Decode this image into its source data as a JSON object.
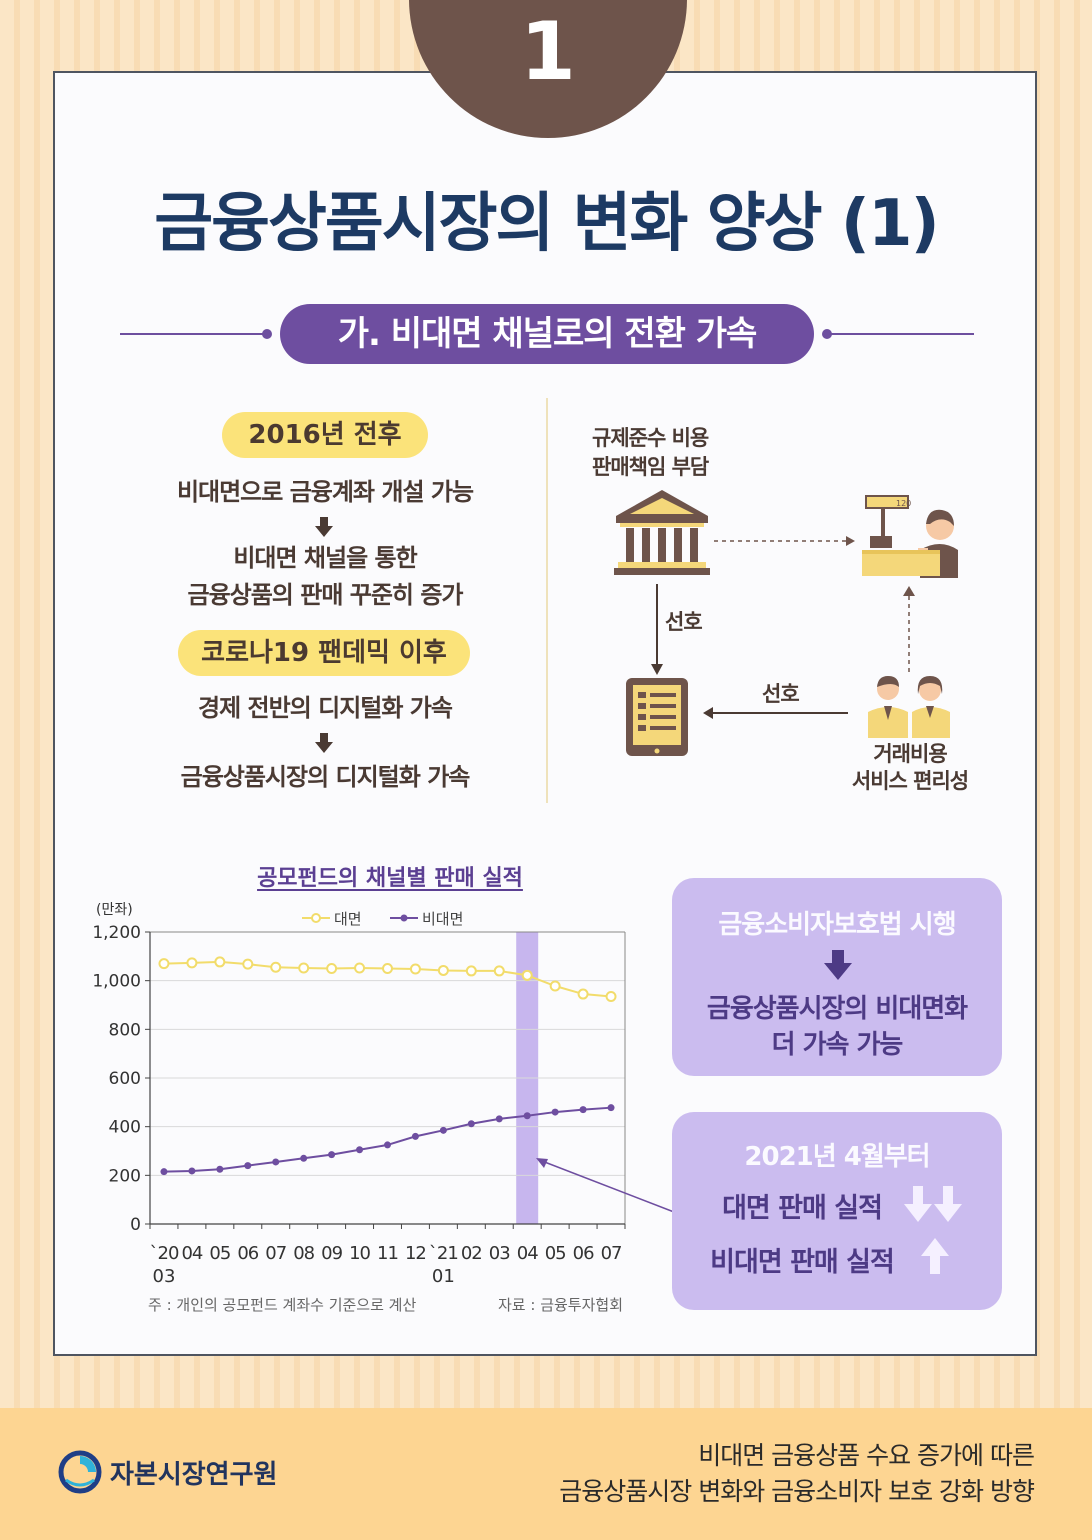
{
  "header": {
    "number": "1",
    "title": "금융상품시장의 변화 양상 (1)",
    "section_label": "가. 비대면 채널로의 전환 가속"
  },
  "left_panel": {
    "badge1": "2016년 전후",
    "text1": "비대면으로 금융계좌 개설 가능",
    "text2a": "비대면 채널을 통한",
    "text2b": "금융상품의 판매 꾸준히 증가",
    "badge2": "코로나19 팬데믹 이후",
    "text3": "경제 전반의 디지털화 가속",
    "text4": "금융상품시장의 디지털화 가속"
  },
  "diagram": {
    "top_label_a": "규제준수 비용",
    "top_label_b": "판매책임 부담",
    "pref_vertical": "선호",
    "pref_horizontal": "선호",
    "bottom_label_a": "거래비용",
    "bottom_label_b": "서비스 편리성",
    "counter_display": "120"
  },
  "chart_data": {
    "type": "line",
    "title": "공모펀드의 채널별 판매 실적",
    "ylabel": "(만좌)",
    "ylim": [
      0,
      1200
    ],
    "yticks": [
      "0",
      "200",
      "400",
      "600",
      "800",
      "1,000",
      "1,200"
    ],
    "x_labels": [
      {
        "top": "`20",
        "bottom": "03"
      },
      {
        "top": "04",
        "bottom": ""
      },
      {
        "top": "05",
        "bottom": ""
      },
      {
        "top": "06",
        "bottom": ""
      },
      {
        "top": "07",
        "bottom": ""
      },
      {
        "top": "08",
        "bottom": ""
      },
      {
        "top": "09",
        "bottom": ""
      },
      {
        "top": "10",
        "bottom": ""
      },
      {
        "top": "11",
        "bottom": ""
      },
      {
        "top": "12",
        "bottom": ""
      },
      {
        "top": "`21",
        "bottom": "01"
      },
      {
        "top": "02",
        "bottom": ""
      },
      {
        "top": "03",
        "bottom": ""
      },
      {
        "top": "04",
        "bottom": ""
      },
      {
        "top": "05",
        "bottom": ""
      },
      {
        "top": "06",
        "bottom": ""
      },
      {
        "top": "07",
        "bottom": ""
      }
    ],
    "series": [
      {
        "name": "대면",
        "color": "#f2dc6b",
        "values": [
          1070,
          1073,
          1077,
          1068,
          1055,
          1052,
          1050,
          1052,
          1050,
          1048,
          1042,
          1040,
          1040,
          1022,
          978,
          945,
          935
        ]
      },
      {
        "name": "비대면",
        "color": "#6e4ea0",
        "values": [
          215,
          218,
          225,
          240,
          255,
          270,
          285,
          305,
          325,
          360,
          385,
          412,
          432,
          445,
          460,
          470,
          478
        ]
      }
    ],
    "highlight_index": 13,
    "highlight_color": "#c7b6ee",
    "legend": "top-center",
    "note": "주 : 개인의  공모펀드  계좌수  기준으로  계산",
    "source": "자료 : 금융투자협회"
  },
  "purple_box1": {
    "line1": "금융소비자보호법 시행",
    "line2": "금융상품시장의 비대면화",
    "line3": "더 가속 가능"
  },
  "purple_box2": {
    "line1": "2021년 4월부터",
    "line2": "대면 판매 실적",
    "line3": "비대면 판매 실적"
  },
  "footer": {
    "org_name": "자본시장연구원",
    "subtitle1": "비대면 금융상품 수요 증가에 따른",
    "subtitle2": "금융상품시장 변화와 금융소비자 보호 강화 방향"
  },
  "colors": {
    "navy": "#1d3a63",
    "purple": "#6e4ea0",
    "lavender": "#cbbcef",
    "yellow": "#fbe37a",
    "brown": "#6e544b",
    "footer_bg": "#fdd592"
  }
}
